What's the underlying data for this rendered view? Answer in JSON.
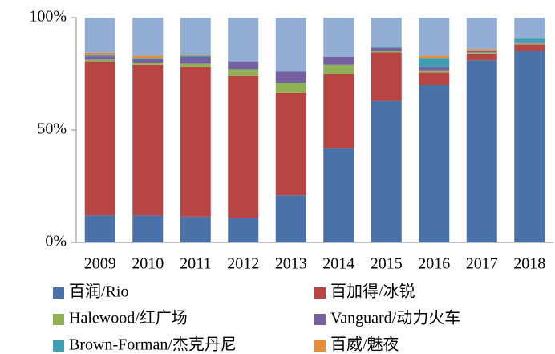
{
  "chart_data": {
    "type": "stacked_bar",
    "categories": [
      "2009",
      "2010",
      "2011",
      "2012",
      "2013",
      "2014",
      "2015",
      "2016",
      "2017",
      "2018"
    ],
    "series": [
      {
        "name": "百润/Rio",
        "color": "#4a72a8",
        "values": [
          12,
          12,
          11.5,
          11,
          21,
          42,
          63,
          70,
          81,
          85
        ]
      },
      {
        "name": "百加得/冰锐",
        "color": "#b84543",
        "values": [
          68.5,
          67,
          66.5,
          63,
          45.5,
          33,
          21.5,
          5.5,
          3,
          3
        ]
      },
      {
        "name": "Halewood/红广场",
        "color": "#8fb055",
        "values": [
          0.8,
          1,
          1.5,
          3,
          4.5,
          4,
          0.5,
          1,
          0.5,
          0.5
        ]
      },
      {
        "name": "Vanguard/动力火车",
        "color": "#7560a0",
        "values": [
          1.5,
          1.5,
          3,
          3.5,
          5,
          3.5,
          1.5,
          1.5,
          0.5,
          0.5
        ]
      },
      {
        "name": "Brown-Forman/杰克丹尼",
        "color": "#3f9db4",
        "values": [
          0.5,
          0.5,
          0.5,
          0,
          0,
          0,
          0.5,
          4,
          0,
          2
        ]
      },
      {
        "name": "百威/魅夜",
        "color": "#e58d3b",
        "values": [
          1,
          1,
          0.5,
          0,
          0,
          0,
          0,
          1,
          1,
          0
        ]
      },
      {
        "color": "#93aed4",
        "values": [
          15.7,
          17,
          16.5,
          19.5,
          24,
          17.5,
          13,
          17,
          14,
          9
        ]
      }
    ],
    "ylim": [
      0,
      100
    ],
    "yticks": [
      {
        "value": 0,
        "label": "0%"
      },
      {
        "value": 50,
        "label": "50%"
      },
      {
        "value": 100,
        "label": "100%"
      }
    ],
    "grid": false
  }
}
